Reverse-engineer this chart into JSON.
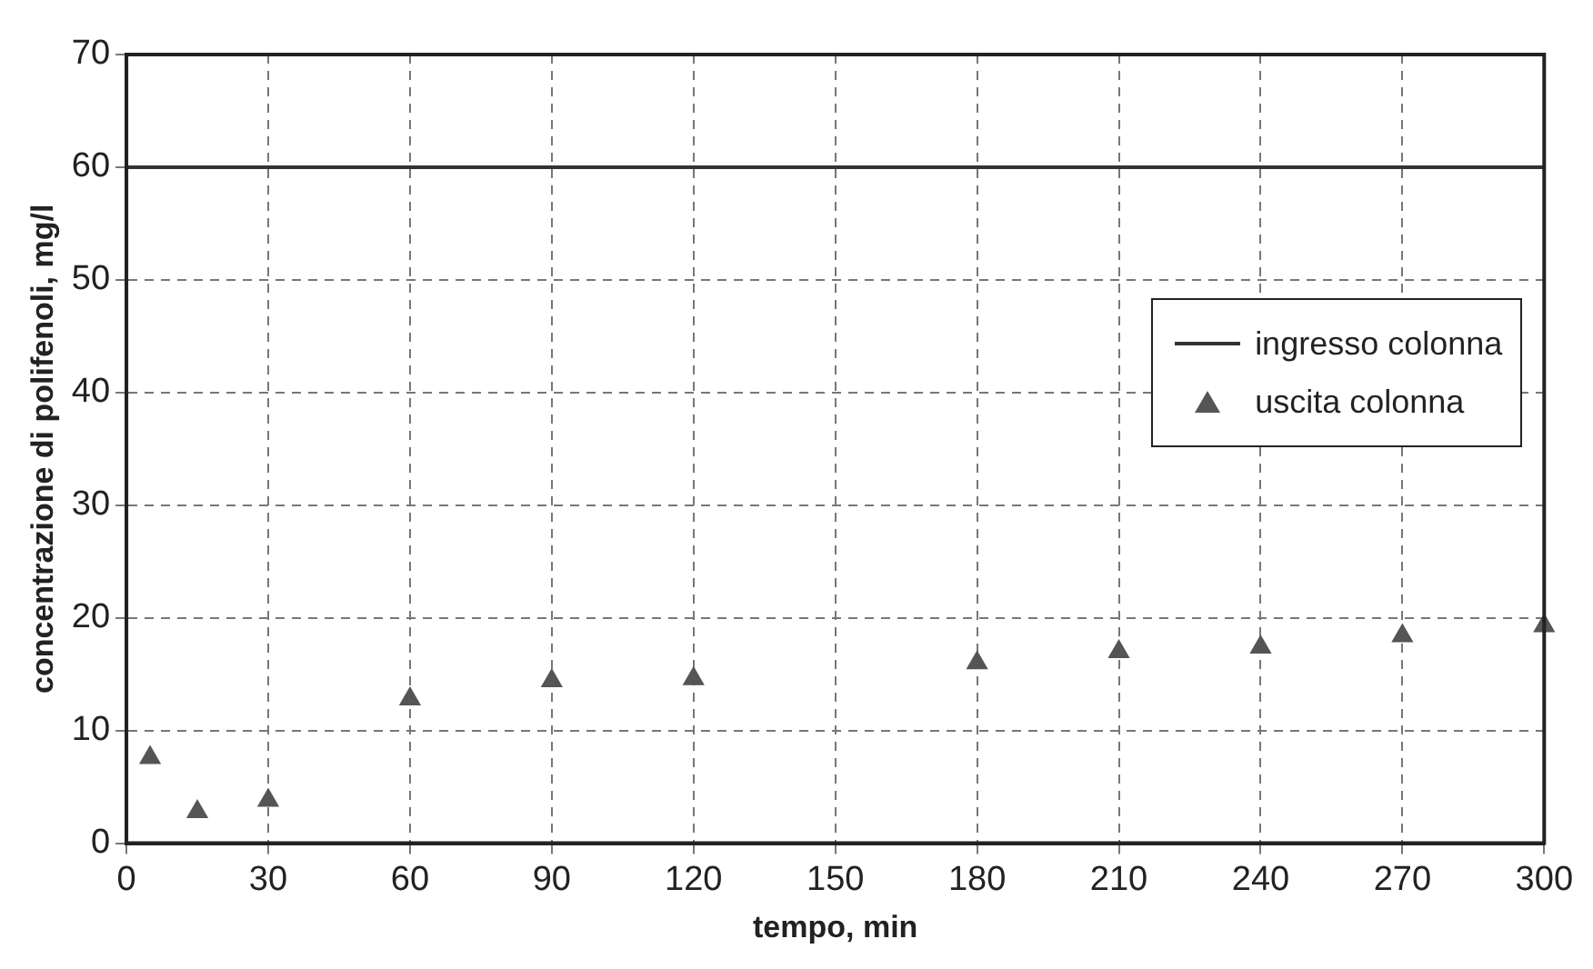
{
  "chart_data": {
    "type": "scatter",
    "xlabel": "tempo, min",
    "ylabel": "concentrazione di polifenoli, mg/l",
    "xlim": [
      0,
      300
    ],
    "xticks": [
      0,
      30,
      60,
      90,
      120,
      150,
      180,
      210,
      240,
      270,
      300
    ],
    "ylim": [
      0,
      70
    ],
    "yticks": [
      0,
      10,
      20,
      30,
      40,
      50,
      60,
      70
    ],
    "grid": true,
    "legend": "right",
    "series": [
      {
        "name": "ingresso colonna",
        "type": "line",
        "color": "#333333",
        "marker": "none",
        "x": [
          0,
          300
        ],
        "values": [
          60,
          60
        ]
      },
      {
        "name": "uscita colonna",
        "color": "#555555",
        "marker": "triangle",
        "x": [
          5,
          15,
          30,
          60,
          90,
          120,
          180,
          210,
          240,
          270,
          300
        ],
        "values": [
          7.6,
          2.8,
          3.8,
          12.8,
          14.4,
          14.6,
          16.0,
          17.0,
          17.4,
          18.4,
          19.3
        ]
      }
    ]
  }
}
